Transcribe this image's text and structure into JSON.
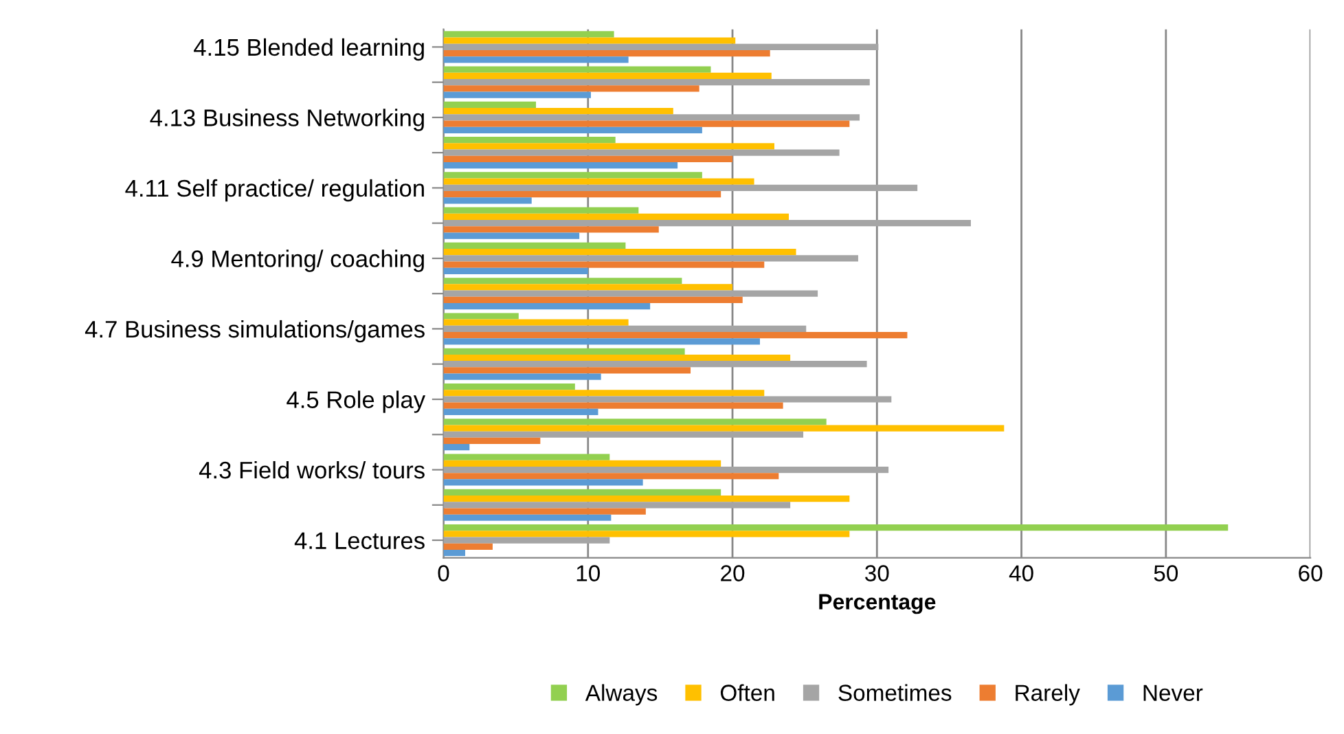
{
  "chart_data": {
    "type": "bar",
    "orientation": "horizontal",
    "xlabel": "Percentage",
    "categories": [
      "4.15 Blended learning",
      null,
      "4.13 Business Networking",
      null,
      "4.11 Self practice/ regulation",
      null,
      "4.9 Mentoring/ coaching",
      null,
      "4.7 Business simulations/games",
      null,
      "4.5 Role play",
      null,
      "4.3 Field works/ tours",
      null,
      "4.1 Lectures"
    ],
    "series": [
      {
        "name": "Always",
        "color": "#92d050",
        "values": [
          11.8,
          18.5,
          6.4,
          11.9,
          17.9,
          13.5,
          12.6,
          16.5,
          5.2,
          16.7,
          9.1,
          26.5,
          11.5,
          19.2,
          54.3
        ]
      },
      {
        "name": "Often",
        "color": "#ffc000",
        "values": [
          20.2,
          22.7,
          15.9,
          22.9,
          21.5,
          23.9,
          24.4,
          20.0,
          12.8,
          24.0,
          22.2,
          38.8,
          19.2,
          28.1,
          28.1
        ]
      },
      {
        "name": "Sometimes",
        "color": "#a5a5a5",
        "values": [
          30.1,
          29.5,
          28.8,
          27.4,
          32.8,
          36.5,
          28.7,
          25.9,
          25.1,
          29.3,
          31.0,
          24.9,
          30.8,
          24.0,
          11.5
        ]
      },
      {
        "name": "Rarely",
        "color": "#ed7d31",
        "values": [
          22.6,
          17.7,
          28.1,
          20.0,
          19.2,
          14.9,
          22.2,
          20.7,
          32.1,
          17.1,
          23.5,
          6.7,
          23.2,
          14.0,
          3.4
        ]
      },
      {
        "name": "Never",
        "color": "#5b9bd5",
        "values": [
          12.8,
          10.2,
          17.9,
          16.2,
          6.1,
          9.4,
          10.0,
          14.3,
          21.9,
          10.9,
          10.7,
          1.8,
          13.8,
          11.6,
          1.5
        ]
      }
    ],
    "xlim": [
      0,
      60
    ],
    "xticks": [
      0,
      10,
      20,
      30,
      40,
      50,
      60
    ],
    "grid": "x",
    "legend": "bottom"
  }
}
